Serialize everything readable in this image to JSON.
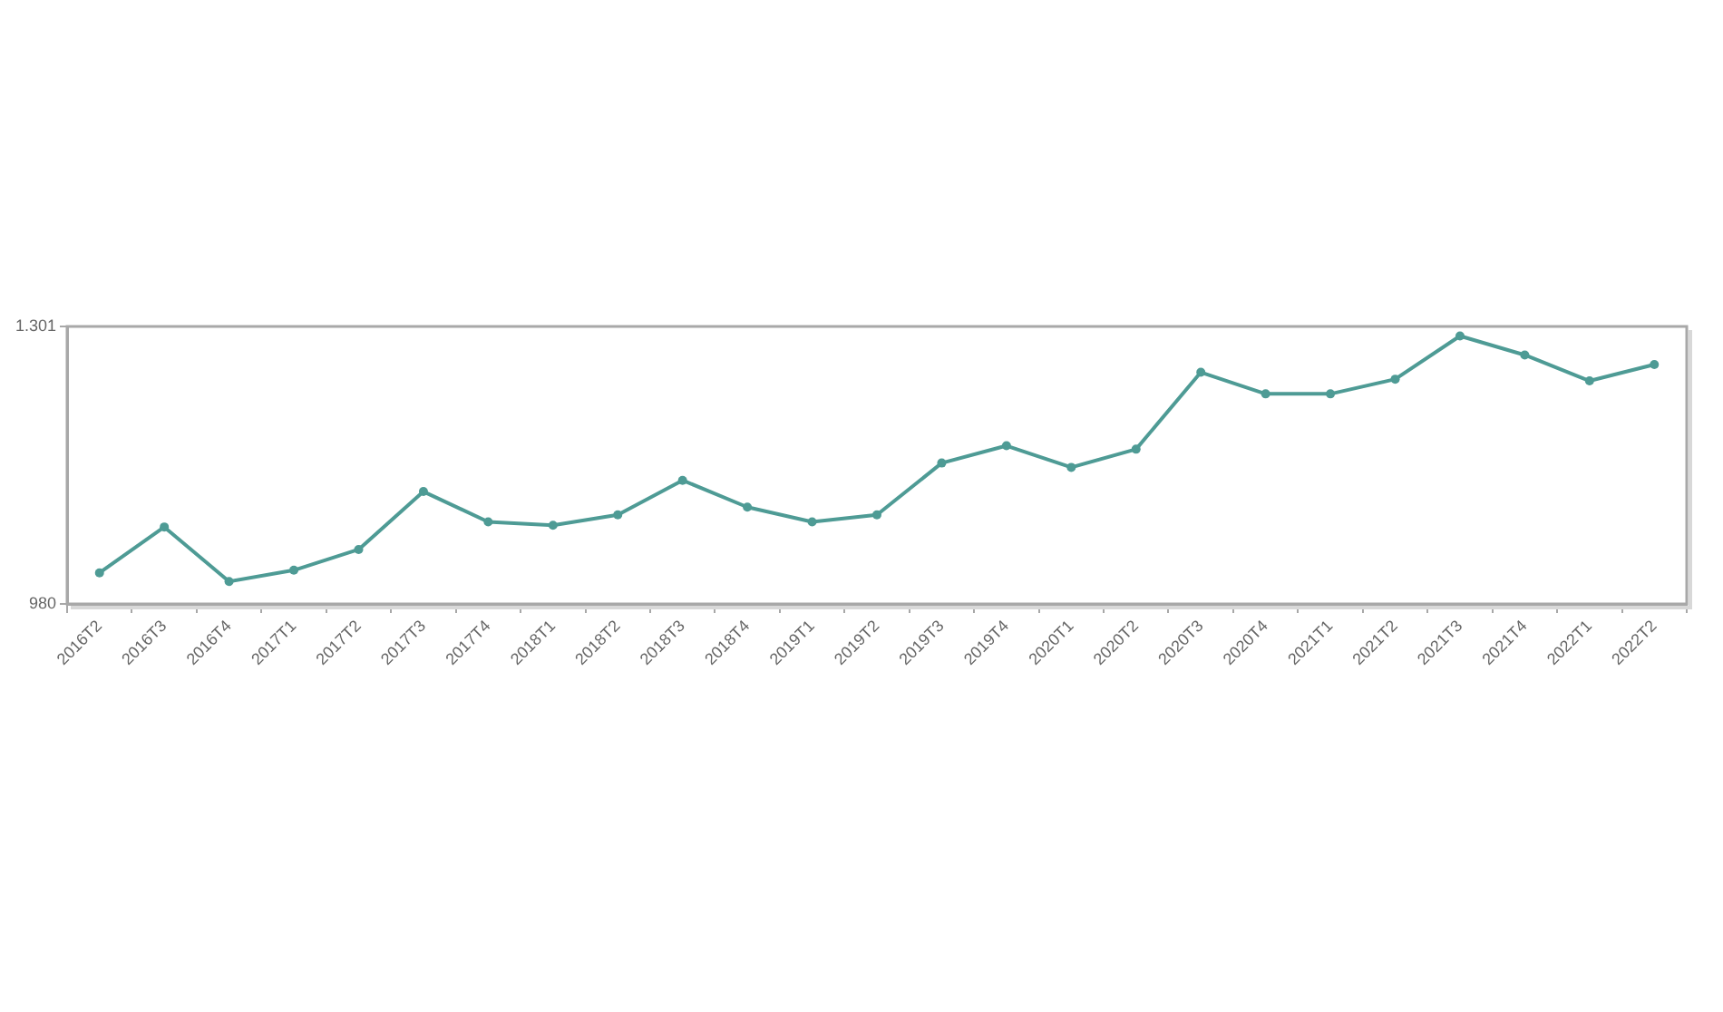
{
  "chart_data": {
    "type": "line",
    "categories": [
      "2016T2",
      "2016T3",
      "2016T4",
      "2017T1",
      "2017T2",
      "2017T3",
      "2017T4",
      "2018T1",
      "2018T2",
      "2018T3",
      "2018T4",
      "2019T1",
      "2019T2",
      "2019T3",
      "2019T4",
      "2020T1",
      "2020T2",
      "2020T3",
      "2020T4",
      "2021T1",
      "2021T2",
      "2021T3",
      "2021T4",
      "2022T1",
      "2022T2"
    ],
    "values": [
      1016,
      1069,
      1006,
      1019,
      1043,
      1110,
      1075,
      1071,
      1083,
      1123,
      1092,
      1075,
      1083,
      1143,
      1163,
      1138,
      1159,
      1248,
      1223,
      1223,
      1240,
      1290,
      1268,
      1238,
      1257
    ],
    "color": "#4e9b95",
    "ylim": [
      980,
      1301
    ],
    "yticks": [
      980,
      {
        "value": 1301,
        "label": "1.301"
      }
    ],
    "grid": false,
    "marker": "circle"
  }
}
